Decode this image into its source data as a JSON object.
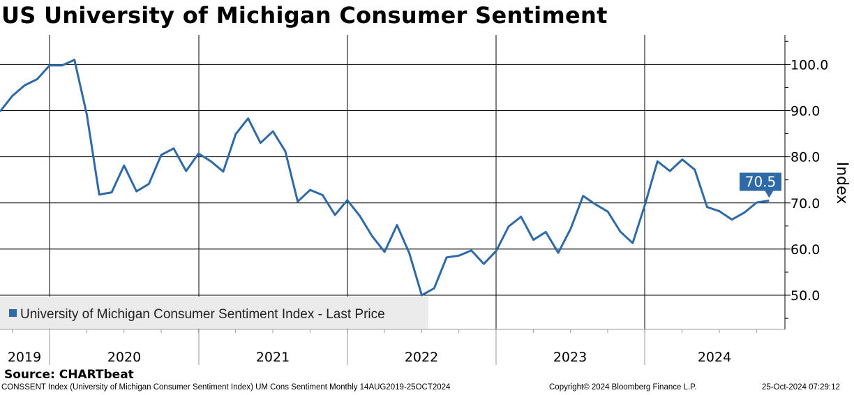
{
  "chart_data": {
    "type": "line",
    "title": "US University of Michigan Consumer Sentiment",
    "ylabel": "Index",
    "xlabel": "",
    "ylim": [
      42.6,
      106.4
    ],
    "yticks": [
      "100.0",
      "90.0",
      "80.0",
      "70.0",
      "60.0",
      "50.0"
    ],
    "ytick_values": [
      100,
      90,
      80,
      70,
      60,
      50
    ],
    "year_labels": [
      "2019",
      "2020",
      "2021",
      "2022",
      "2023",
      "2024"
    ],
    "grid": true,
    "legend_position": "bottom-left",
    "series": [
      {
        "name": "University of Michigan Consumer Sentiment Index - Last Price",
        "color": "#2e6aa8",
        "start": "2019-08",
        "frequency": "monthly",
        "values": [
          89.8,
          93.2,
          95.5,
          96.8,
          99.8,
          99.8,
          101.0,
          89.1,
          71.8,
          72.3,
          78.1,
          72.5,
          74.1,
          80.4,
          81.8,
          76.9,
          80.7,
          79.0,
          76.8,
          84.9,
          88.3,
          83.0,
          85.5,
          81.2,
          70.3,
          72.8,
          71.7,
          67.4,
          70.6,
          67.2,
          62.8,
          59.4,
          65.2,
          59.1,
          50.0,
          51.5,
          58.2,
          58.6,
          59.7,
          56.8,
          59.6,
          64.9,
          67.0,
          62.0,
          63.7,
          59.2,
          64.4,
          71.5,
          69.7,
          68.1,
          63.8,
          61.3,
          69.7,
          79.0,
          76.9,
          79.4,
          77.2,
          69.1,
          68.2,
          66.4,
          67.9,
          70.1,
          70.5
        ]
      }
    ],
    "last_value_label": "70.5"
  },
  "footer": {
    "source": "Source: CHARTbeat",
    "description": "CONSSENT Index (University of Michigan Consumer Sentiment Index) UM Cons Sentiment  Monthly 14AUG2019-25OCT2024",
    "copyright": "Copyright© 2024 Bloomberg Finance L.P.",
    "timestamp": "25-Oct-2024 07:29:12"
  }
}
